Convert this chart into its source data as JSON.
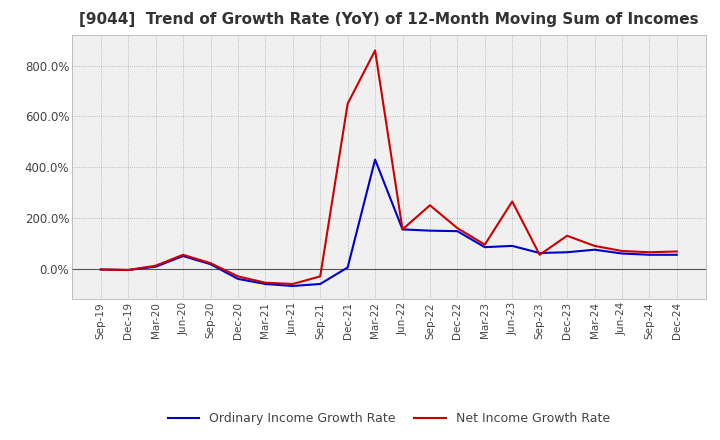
{
  "title": "[9044]  Trend of Growth Rate (YoY) of 12-Month Moving Sum of Incomes",
  "title_fontsize": 11,
  "ylim": [
    -120,
    920
  ],
  "yticks": [
    0,
    200,
    400,
    600,
    800
  ],
  "ytick_labels": [
    "0.0%",
    "200.0%",
    "400.0%",
    "600.0%",
    "800.0%"
  ],
  "background_color": "#ffffff",
  "plot_bg_color": "#f0f0f0",
  "grid_color": "#aaaaaa",
  "legend_labels": [
    "Ordinary Income Growth Rate",
    "Net Income Growth Rate"
  ],
  "legend_colors": [
    "#0000cc",
    "#cc0000"
  ],
  "x_labels": [
    "Sep-19",
    "Dec-19",
    "Mar-20",
    "Jun-20",
    "Sep-20",
    "Dec-20",
    "Mar-21",
    "Jun-21",
    "Sep-21",
    "Dec-21",
    "Mar-22",
    "Jun-22",
    "Sep-22",
    "Dec-22",
    "Mar-23",
    "Jun-23",
    "Sep-23",
    "Dec-23",
    "Mar-24",
    "Jun-24",
    "Sep-24",
    "Dec-24"
  ],
  "ordinary_income": [
    -3,
    -5,
    8,
    50,
    18,
    -40,
    -60,
    -68,
    -60,
    5,
    430,
    155,
    150,
    148,
    85,
    90,
    62,
    65,
    75,
    60,
    55,
    55
  ],
  "net_income": [
    -3,
    -5,
    12,
    55,
    22,
    -30,
    -55,
    -60,
    -30,
    650,
    860,
    155,
    250,
    160,
    95,
    265,
    55,
    130,
    90,
    70,
    65,
    68
  ]
}
